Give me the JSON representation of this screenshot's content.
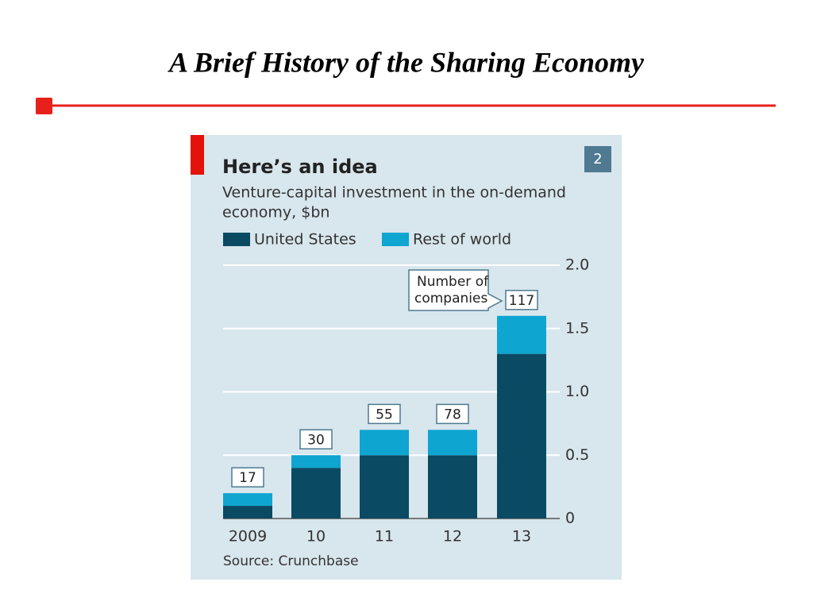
{
  "slide_title": "A Brief History of the Sharing Economy",
  "chart_data": {
    "type": "stacked_bar",
    "badge": "2",
    "title": "Here’s an idea",
    "subtitle": [
      "Venture-capital investment in the on-demand",
      "economy, $bn"
    ],
    "categories": [
      "2009",
      "10",
      "11",
      "12",
      "13"
    ],
    "series": [
      {
        "name": "United States",
        "color": "#0b4a63",
        "values": [
          0.1,
          0.4,
          0.5,
          0.5,
          1.3
        ]
      },
      {
        "name": "Rest of world",
        "color": "#0ea5d1",
        "values": [
          0.1,
          0.1,
          0.2,
          0.2,
          0.3
        ]
      }
    ],
    "annotation": [
      "Number of",
      "companies"
    ],
    "companies": [
      17,
      30,
      55,
      78,
      117
    ],
    "ylim": [
      0,
      2
    ],
    "yticks": [
      0,
      0.5,
      {
        "value": 1,
        "label": "1.0"
      },
      1.5,
      {
        "value": 2,
        "label": "2.0"
      }
    ],
    "grid": true,
    "source": "Source: Crunchbase"
  }
}
